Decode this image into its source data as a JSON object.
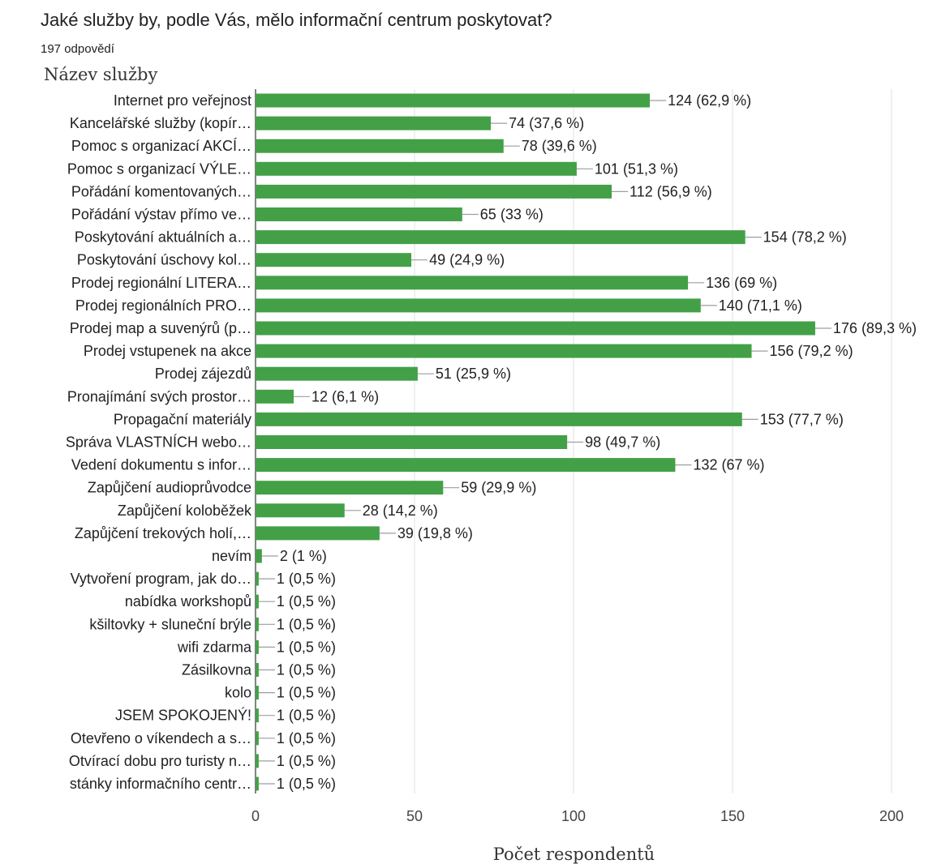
{
  "chart_data": {
    "type": "bar",
    "orientation": "horizontal",
    "title": "Jaké služby by, podle Vás, mělo informační centrum poskytovat?",
    "subtitle": "197 odpovědí",
    "ylabel": "Název služby",
    "xlabel": "Počet respondentů",
    "xlim": [
      0,
      200
    ],
    "xticks": [
      0,
      50,
      100,
      150,
      200
    ],
    "grid": true,
    "bar_color": "#43a047",
    "categories": [
      "Internet pro veřejnost",
      "Kancelářské služby (kopír…",
      "Pomoc s organizací AKCÍ…",
      "Pomoc s organizací VÝLE…",
      "Pořádání komentovaných…",
      "Pořádání výstav přímo ve…",
      "Poskytování aktuálních a…",
      "Poskytování úschovy kol…",
      "Prodej regionální LITERA…",
      "Prodej regionálních PRO…",
      "Prodej map a suvenýrů (p…",
      "Prodej vstupenek na akce",
      "Prodej zájezdů",
      "Pronajímání svých prostor…",
      "Propagační materiály",
      "Správa VLASTNÍCH webo…",
      "Vedení dokumentu s infor…",
      "Zapůjčení audioprůvodce",
      "Zapůjčení koloběžek",
      "Zapůjčení trekových holí,…",
      "nevím",
      "Vytvoření program, jak do…",
      "nabídka workshopů",
      "kšiltovky + sluneční brýle",
      "wifi zdarma",
      "Zásilkovna",
      "kolo",
      "JSEM SPOKOJENÝ!",
      "Otevřeno o víkendech a s…",
      "Otvírací dobu pro turisty n…",
      "stánky informačního centr…"
    ],
    "values": [
      124,
      74,
      78,
      101,
      112,
      65,
      154,
      49,
      136,
      140,
      176,
      156,
      51,
      12,
      153,
      98,
      132,
      59,
      28,
      39,
      2,
      1,
      1,
      1,
      1,
      1,
      1,
      1,
      1,
      1,
      1
    ],
    "labels": [
      "124 (62,9 %)",
      "74 (37,6 %)",
      "78 (39,6 %)",
      "101 (51,3 %)",
      "112 (56,9 %)",
      "65 (33 %)",
      "154 (78,2 %)",
      "49 (24,9 %)",
      "136 (69 %)",
      "140 (71,1 %)",
      "176 (89,3 %)",
      "156 (79,2 %)",
      "51 (25,9 %)",
      "12 (6,1 %)",
      "153 (77,7 %)",
      "98 (49,7 %)",
      "132 (67 %)",
      "59 (29,9 %)",
      "28 (14,2 %)",
      "39 (19,8 %)",
      "2 (1 %)",
      "1 (0,5 %)",
      "1 (0,5 %)",
      "1 (0,5 %)",
      "1 (0,5 %)",
      "1 (0,5 %)",
      "1 (0,5 %)",
      "1 (0,5 %)",
      "1 (0,5 %)",
      "1 (0,5 %)",
      "1 (0,5 %)"
    ]
  }
}
